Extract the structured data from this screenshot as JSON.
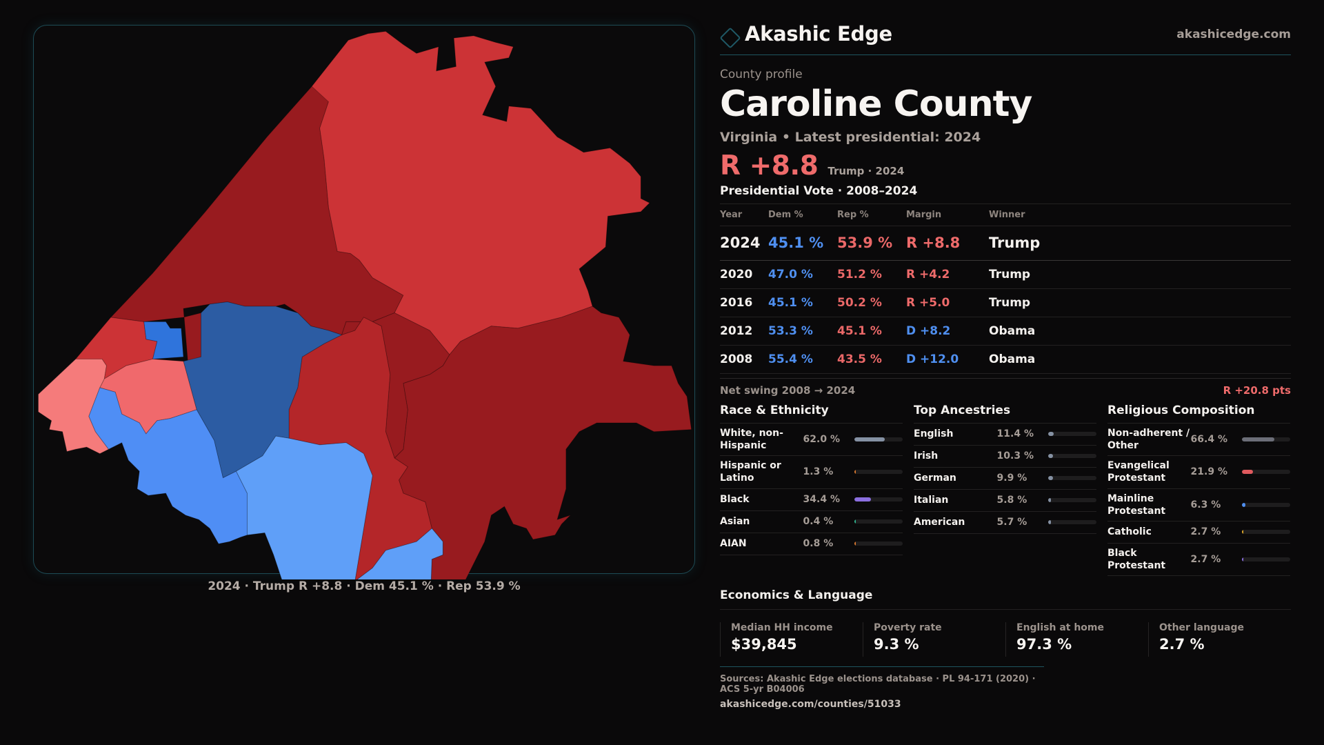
{
  "brand": {
    "name": "Akashic Edge",
    "url": "akashicedge.com",
    "logo_icon": "diamond-outline-icon"
  },
  "profile": {
    "eyebrow": "County profile",
    "county": "Caroline County",
    "subtitle": "Virginia • Latest presidential: 2024",
    "headline_margin": "R +8.8",
    "headline_sub": "Trump · 2024"
  },
  "presidential": {
    "title": "Presidential Vote · 2008–2024",
    "columns": [
      "Year",
      "Dem %",
      "Rep %",
      "Margin",
      "Winner"
    ],
    "rows": [
      {
        "year": "2024",
        "dem": "45.1 %",
        "rep": "53.9 %",
        "margin": "R +8.8",
        "party": "R",
        "winner": "Trump"
      },
      {
        "year": "2020",
        "dem": "47.0 %",
        "rep": "51.2 %",
        "margin": "R +4.2",
        "party": "R",
        "winner": "Trump"
      },
      {
        "year": "2016",
        "dem": "45.1 %",
        "rep": "50.2 %",
        "margin": "R +5.0",
        "party": "R",
        "winner": "Trump"
      },
      {
        "year": "2012",
        "dem": "53.3 %",
        "rep": "45.1 %",
        "margin": "D +8.2",
        "party": "D",
        "winner": "Obama"
      },
      {
        "year": "2008",
        "dem": "55.4 %",
        "rep": "43.5 %",
        "margin": "D +12.0",
        "party": "D",
        "winner": "Obama"
      }
    ],
    "swing_label": "Net swing 2008 → 2024",
    "swing_value": "R +20.8 pts"
  },
  "race": {
    "title": "Race & Ethnicity",
    "rows": [
      {
        "label": "White, non-Hispanic",
        "value": "62.0 %",
        "pct": 62.0,
        "color": "#8591a3"
      },
      {
        "label": "Hispanic or Latino",
        "value": "1.3 %",
        "pct": 1.3,
        "color": "#d9782e"
      },
      {
        "label": "Black",
        "value": "34.4 %",
        "pct": 34.4,
        "color": "#8b6fe0"
      },
      {
        "label": "Asian",
        "value": "0.4 %",
        "pct": 0.4,
        "color": "#2fb38e"
      },
      {
        "label": "AIAN",
        "value": "0.8 %",
        "pct": 0.8,
        "color": "#d9782e"
      }
    ]
  },
  "ancestry": {
    "title": "Top Ancestries",
    "rows": [
      {
        "label": "English",
        "value": "11.4 %",
        "pct": 11.4,
        "color": "#8591a3"
      },
      {
        "label": "Irish",
        "value": "10.3 %",
        "pct": 10.3,
        "color": "#8591a3"
      },
      {
        "label": "German",
        "value": "9.9 %",
        "pct": 9.9,
        "color": "#8591a3"
      },
      {
        "label": "Italian",
        "value": "5.8 %",
        "pct": 5.8,
        "color": "#8591a3"
      },
      {
        "label": "American",
        "value": "5.7 %",
        "pct": 5.7,
        "color": "#8591a3"
      }
    ]
  },
  "religion": {
    "title": "Religious Composition",
    "rows": [
      {
        "label": "Non-adherent / Other",
        "value": "66.4 %",
        "pct": 66.4,
        "color": "#6c6e78"
      },
      {
        "label": "Evangelical Protestant",
        "value": "21.9 %",
        "pct": 21.9,
        "color": "#e05a5e"
      },
      {
        "label": "Mainline Protestant",
        "value": "6.3 %",
        "pct": 6.3,
        "color": "#4f8ff0"
      },
      {
        "label": "Catholic",
        "value": "2.7 %",
        "pct": 2.7,
        "color": "#e0a92a"
      },
      {
        "label": "Black Protestant",
        "value": "2.7 %",
        "pct": 2.7,
        "color": "#8b6fe0"
      }
    ]
  },
  "economics": {
    "title": "Economics & Language",
    "items": [
      {
        "label": "Median HH income",
        "value": "$39,845"
      },
      {
        "label": "Poverty rate",
        "value": "9.3 %"
      },
      {
        "label": "English at home",
        "value": "97.3 %"
      },
      {
        "label": "Other language",
        "value": "2.7 %"
      }
    ]
  },
  "sources": {
    "text": "Sources: Akashic Edge elections database · PL 94-171 (2020) · ACS 5-yr B04006",
    "url": "akashicedge.com/counties/51033"
  },
  "map": {
    "caption": "2024 · Trump R +8.8 · Dem 45.1 % · Rep 53.9 %",
    "colors": {
      "strong_r": "#981b1f",
      "lean_r": "#cc3336",
      "mid_r": "#b42629",
      "light_r": "#f0696c",
      "pale_r": "#f57b7b",
      "strong_d": "#2c5ca3",
      "mid_d": "#2f74dc",
      "lean_d": "#4f8ef5",
      "light_d": "#5f9ff8"
    }
  }
}
